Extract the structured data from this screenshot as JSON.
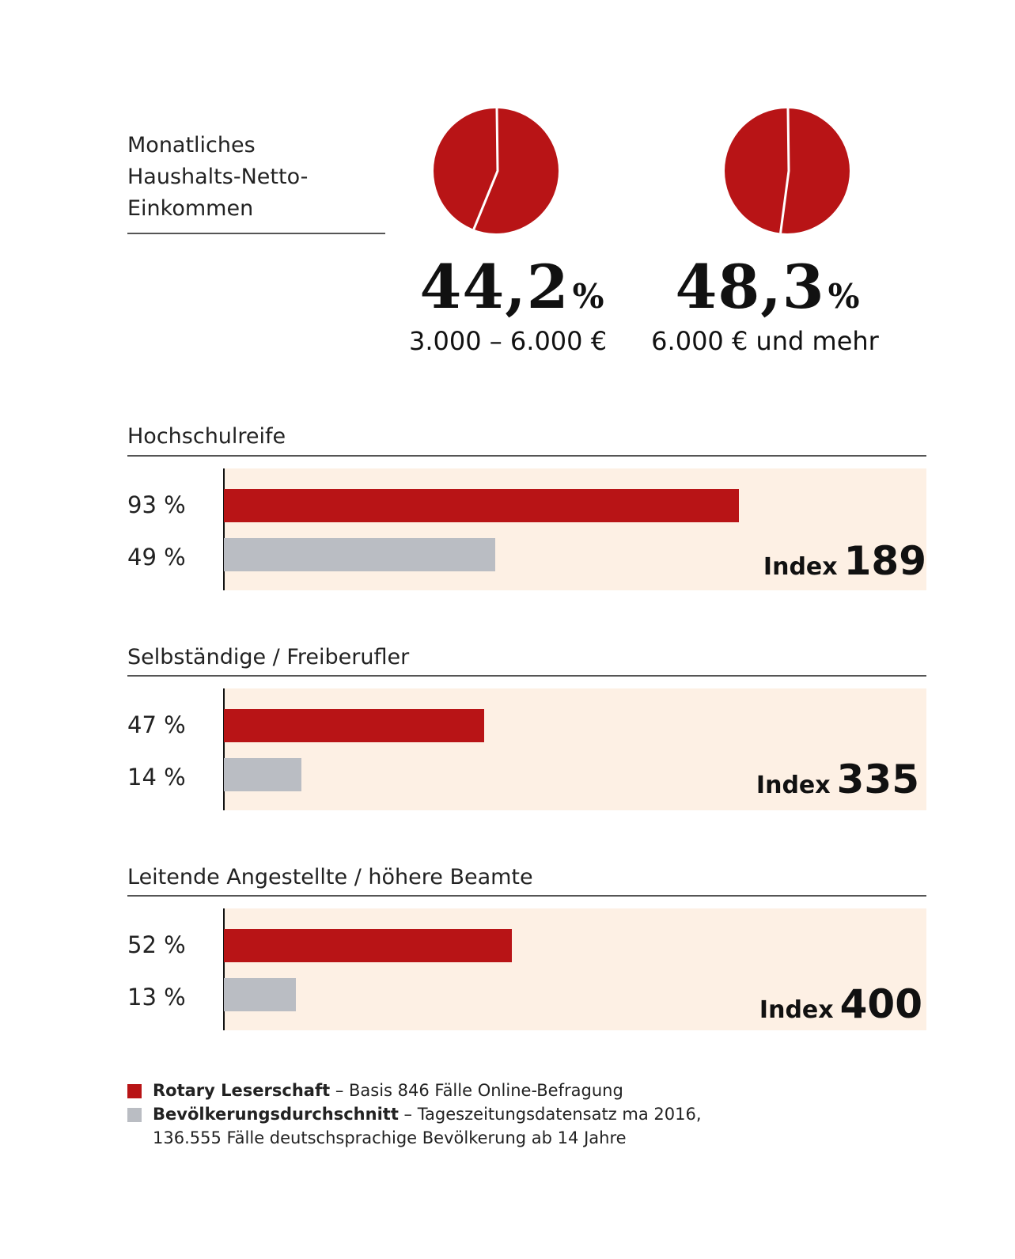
{
  "income": {
    "label_lines": [
      "Monatliches",
      "Haushalts-Netto-",
      "Einkommen"
    ],
    "pies": [
      {
        "value_text": "44,2",
        "unit": "%",
        "range": "3.000 – 6.000 €",
        "share": 44.2
      },
      {
        "value_text": "48,3",
        "unit": "%",
        "range": "6.000 € und mehr",
        "share": 48.3
      }
    ]
  },
  "colors": {
    "rotary": "#b81416",
    "population": "#babdc3",
    "panel": "#fdf0e4"
  },
  "chart_data": [
    {
      "type": "pie",
      "title": "Monatliches Haushalts-Netto-Einkommen",
      "slices": [
        {
          "label": "3.000 – 6.000 €",
          "value": 44.2
        },
        {
          "label": "6.000 € und mehr",
          "value": 48.3
        }
      ]
    },
    {
      "type": "bar",
      "orientation": "horizontal",
      "groups": [
        {
          "title": "Hochschulreife",
          "rotary": 93,
          "population": 49,
          "rotary_label": "93 %",
          "population_label": "49 %",
          "index_word": "Index",
          "index_value": "189"
        },
        {
          "title": "Selbständige / Freiberufler",
          "rotary": 47,
          "population": 14,
          "rotary_label": "47 %",
          "population_label": "14 %",
          "index_word": "Index",
          "index_value": "335"
        },
        {
          "title": "Leitende Angestellte / höhere Beamte",
          "rotary": 52,
          "population": 13,
          "rotary_label": "52 %",
          "population_label": "13 %",
          "index_word": "Index",
          "index_value": "400"
        }
      ],
      "xlim": [
        0,
        100
      ]
    }
  ],
  "legend": [
    {
      "name": "Rotary Leserschaft",
      "detail": " – Basis 846 Fälle Online-Befragung"
    },
    {
      "name": "Bevölkerungsdurchschnitt",
      "detail": " – Tageszeitungsdatensatz ma 2016,",
      "line2": "136.555 Fälle deutschsprachige Bevölkerung ab 14 Jahre"
    }
  ]
}
